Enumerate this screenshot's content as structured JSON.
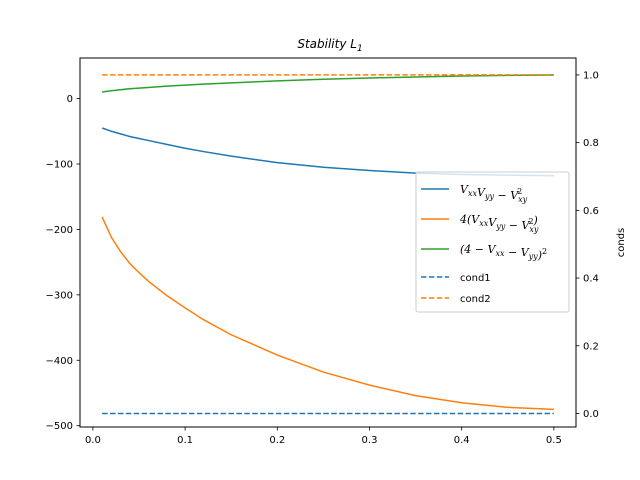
{
  "chart_data": {
    "type": "line",
    "title": "Stability L",
    "title_subscript": "1",
    "xlabel": "",
    "ylabel": "",
    "y2label": "conds",
    "xlim": [
      -0.014,
      0.524
    ],
    "ylim": [
      -502,
      62
    ],
    "y2lim": [
      -0.04,
      1.05
    ],
    "xticks": [
      0.0,
      0.1,
      0.2,
      0.3,
      0.4,
      0.5
    ],
    "yticks": [
      0,
      -100,
      -200,
      -300,
      -400,
      -500
    ],
    "y2ticks": [
      0.0,
      0.2,
      0.4,
      0.6,
      0.8,
      1.0
    ],
    "grid": false,
    "legend_position": "center-right",
    "x": [
      0.01,
      0.02,
      0.03,
      0.04,
      0.05,
      0.06,
      0.08,
      0.1,
      0.12,
      0.15,
      0.2,
      0.25,
      0.3,
      0.35,
      0.4,
      0.45,
      0.5
    ],
    "series": [
      {
        "name": "VxxVyy − Vxy²",
        "axis": "left",
        "color": "#1f77b4",
        "dash": "solid",
        "values": [
          -45,
          -50,
          -54,
          -58,
          -61,
          -64,
          -70,
          -76,
          -81,
          -88,
          -98,
          -105,
          -110,
          -114,
          -116,
          -117,
          -118
        ]
      },
      {
        "name": "4(VxxVyy − Vxy²)",
        "axis": "left",
        "color": "#ff7f0e",
        "dash": "solid",
        "values": [
          -181,
          -212,
          -234,
          -252,
          -266,
          -279,
          -301,
          -320,
          -338,
          -361,
          -392,
          -418,
          -438,
          -454,
          -465,
          -472,
          -475
        ]
      },
      {
        "name": "(4 − Vxx − Vyy)²",
        "axis": "left",
        "color": "#2ca02c",
        "dash": "solid",
        "values": [
          10,
          12,
          13.5,
          15,
          16,
          17,
          19,
          20.5,
          22,
          24,
          27,
          29.5,
          31.5,
          33,
          34.5,
          35.5,
          36
        ]
      },
      {
        "name": "cond1",
        "axis": "right",
        "color": "#1f77b4",
        "dash": "dashed",
        "values": [
          0,
          0,
          0,
          0,
          0,
          0,
          0,
          0,
          0,
          0,
          0,
          0,
          0,
          0,
          0,
          0,
          0
        ]
      },
      {
        "name": "cond2",
        "axis": "right",
        "color": "#ff7f0e",
        "dash": "dashed",
        "values": [
          1,
          1,
          1,
          1,
          1,
          1,
          1,
          1,
          1,
          1,
          1,
          1,
          1,
          1,
          1,
          1,
          1
        ]
      }
    ]
  }
}
